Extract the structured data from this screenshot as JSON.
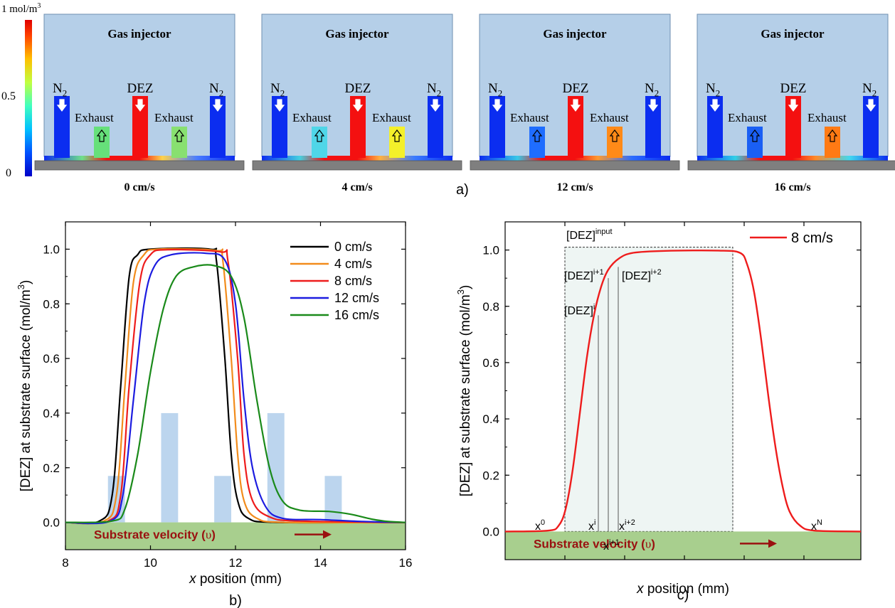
{
  "colorbar": {
    "top_label": "1 mol/m",
    "top_label_sup": "3",
    "mid_label": "0.5",
    "bottom_label": "0"
  },
  "panel_a": {
    "label": "a)",
    "panels": [
      {
        "velocity_label": "0 cm/s",
        "left_exhaust_color": "#66e07a",
        "right_exhaust_color": "#88e070",
        "slit_grad": [
          "#6fe08a",
          "#ffd24a",
          "#4a7dff"
        ]
      },
      {
        "velocity_label": "4 cm/s",
        "left_exhaust_color": "#4fd6e8",
        "right_exhaust_color": "#f4f02a",
        "slit_grad": [
          "#44d0e0",
          "#ffb040",
          "#3a7cff"
        ]
      },
      {
        "velocity_label": "12 cm/s",
        "left_exhaust_color": "#1f6dff",
        "right_exhaust_color": "#ff8a18",
        "slit_grad": [
          "#38c8e8",
          "#ff9a30",
          "#2b6dff"
        ]
      },
      {
        "velocity_label": "16 cm/s",
        "left_exhaust_color": "#1a5ff4",
        "right_exhaust_color": "#ff7a14",
        "slit_grad": [
          "#30d0e8",
          "#ff8a28",
          "#40d8f0"
        ]
      }
    ],
    "labels": {
      "title": "Gas injector",
      "n2": "N",
      "n2_sub": "2",
      "dez": "DEZ",
      "exhaust": "Exhaust"
    },
    "colors": {
      "injector_bg": "#b5cfe8",
      "n2": "#0b2df0",
      "dez": "#f41010",
      "substrate": "#7f7f7f"
    }
  },
  "chart_data": [
    {
      "type": "line",
      "panel_label": "b)",
      "xlabel_italic": "x",
      "xlabel_rest": " position (mm)",
      "ylabel": "[DEZ] at substrate surface (mol/m",
      "ylabel_sup": "3",
      "ylabel_close": ")",
      "xlim": [
        8,
        16
      ],
      "ylim": [
        -0.1,
        1.1
      ],
      "xticks": [
        "8",
        "10",
        "12",
        "14",
        "16"
      ],
      "yticks": [
        "0.0",
        "0.2",
        "0.4",
        "0.6",
        "0.8",
        "1.0"
      ],
      "substrate_text": "Substrate velocity (",
      "substrate_symbol": "υ",
      "substrate_close": ")",
      "background_bars": [
        {
          "x0": 9.0,
          "x1": 9.4,
          "height": 0.17
        },
        {
          "x0": 10.25,
          "x1": 10.65,
          "height": 0.4
        },
        {
          "x0": 11.5,
          "x1": 11.9,
          "height": 0.17
        },
        {
          "x0": 12.75,
          "x1": 13.15,
          "height": 0.4
        },
        {
          "x0": 14.1,
          "x1": 14.5,
          "height": 0.17
        }
      ],
      "series": [
        {
          "name": "0 cm/s",
          "color": "#000000",
          "plateau": 1.0,
          "points": [
            [
              8,
              0
            ],
            [
              8.8,
              0.005
            ],
            [
              9.1,
              0.1
            ],
            [
              9.3,
              0.5
            ],
            [
              9.5,
              0.9
            ],
            [
              9.7,
              0.98
            ],
            [
              10,
              1.0
            ],
            [
              11.4,
              1.0
            ],
            [
              11.55,
              0.96
            ],
            [
              11.75,
              0.6
            ],
            [
              11.9,
              0.25
            ],
            [
              12.05,
              0.08
            ],
            [
              12.3,
              0.015
            ],
            [
              13,
              0
            ],
            [
              16,
              0
            ]
          ]
        },
        {
          "name": "4 cm/s",
          "color": "#f28c1c",
          "plateau": 1.0,
          "points": [
            [
              8,
              0
            ],
            [
              8.9,
              0.005
            ],
            [
              9.2,
              0.1
            ],
            [
              9.4,
              0.5
            ],
            [
              9.6,
              0.88
            ],
            [
              9.85,
              0.98
            ],
            [
              10.2,
              1.0
            ],
            [
              11.55,
              0.995
            ],
            [
              11.7,
              0.96
            ],
            [
              11.9,
              0.6
            ],
            [
              12.05,
              0.25
            ],
            [
              12.2,
              0.08
            ],
            [
              12.5,
              0.015
            ],
            [
              13.2,
              0
            ],
            [
              16,
              0
            ]
          ]
        },
        {
          "name": "8 cm/s",
          "color": "#ee1c1c",
          "plateau": 1.0,
          "points": [
            [
              8,
              0
            ],
            [
              9.0,
              0.005
            ],
            [
              9.3,
              0.1
            ],
            [
              9.5,
              0.5
            ],
            [
              9.75,
              0.88
            ],
            [
              10.0,
              0.98
            ],
            [
              10.4,
              0.998
            ],
            [
              11.65,
              0.99
            ],
            [
              11.82,
              0.96
            ],
            [
              12.05,
              0.6
            ],
            [
              12.2,
              0.25
            ],
            [
              12.4,
              0.08
            ],
            [
              12.8,
              0.02
            ],
            [
              13.5,
              0.005
            ],
            [
              16,
              0
            ]
          ]
        },
        {
          "name": "12 cm/s",
          "color": "#1c1ce0",
          "plateau": 0.985,
          "points": [
            [
              8,
              0
            ],
            [
              9.05,
              0.005
            ],
            [
              9.35,
              0.1
            ],
            [
              9.6,
              0.45
            ],
            [
              9.85,
              0.8
            ],
            [
              10.1,
              0.94
            ],
            [
              10.5,
              0.98
            ],
            [
              11.3,
              0.985
            ],
            [
              11.75,
              0.96
            ],
            [
              12.0,
              0.8
            ],
            [
              12.2,
              0.45
            ],
            [
              12.4,
              0.2
            ],
            [
              12.7,
              0.06
            ],
            [
              13.1,
              0.015
            ],
            [
              14.0,
              0.01
            ],
            [
              15,
              0.003
            ],
            [
              16,
              0
            ]
          ]
        },
        {
          "name": "16 cm/s",
          "color": "#1a8a1a",
          "plateau": 0.94,
          "points": [
            [
              8,
              0
            ],
            [
              9.1,
              0.005
            ],
            [
              9.4,
              0.05
            ],
            [
              9.7,
              0.25
            ],
            [
              10.0,
              0.55
            ],
            [
              10.3,
              0.78
            ],
            [
              10.6,
              0.9
            ],
            [
              11.0,
              0.935
            ],
            [
              11.5,
              0.94
            ],
            [
              11.9,
              0.9
            ],
            [
              12.2,
              0.75
            ],
            [
              12.5,
              0.45
            ],
            [
              12.8,
              0.2
            ],
            [
              13.1,
              0.08
            ],
            [
              13.5,
              0.045
            ],
            [
              14.2,
              0.04
            ],
            [
              14.7,
              0.03
            ],
            [
              15.2,
              0.012
            ],
            [
              15.6,
              0.003
            ],
            [
              16,
              0
            ]
          ]
        }
      ]
    },
    {
      "type": "line",
      "panel_label": "c)",
      "xlabel_italic": "x",
      "xlabel_rest": " position (mm)",
      "ylabel": "[DEZ] at substrate surface (mol/m",
      "ylabel_sup": "3",
      "ylabel_close": ")",
      "xlim": [
        0,
        1
      ],
      "ylim": [
        -0.1,
        1.1
      ],
      "yticks": [
        "0.0",
        "0.2",
        "0.4",
        "0.6",
        "0.8",
        "1.0"
      ],
      "substrate_text": "Substrate velocity (",
      "substrate_symbol": "υ",
      "substrate_close": ")",
      "legend": "8 cm/s",
      "color": "#ee1c1c",
      "box_label": "[DEZ]",
      "box_label_sup": "input",
      "annotations": {
        "dez_i": "[DEZ]",
        "dez_i_sup": "i",
        "dez_i1": "[DEZ]",
        "dez_i1_sup": "i+1",
        "dez_i2": "[DEZ]",
        "dez_i2_sup": "i+2",
        "x0": "x",
        "x0_sup": "0",
        "xi": "x",
        "xi_sup": "i",
        "xi1": "x",
        "xi1_sup": "i+1",
        "xi2": "x",
        "xi2_sup": "i+2",
        "xN": "x",
        "xN_sup": "N"
      },
      "points": [
        [
          0,
          0
        ],
        [
          0.12,
          0.003
        ],
        [
          0.15,
          0.02
        ],
        [
          0.17,
          0.08
        ],
        [
          0.19,
          0.22
        ],
        [
          0.21,
          0.42
        ],
        [
          0.23,
          0.62
        ],
        [
          0.25,
          0.77
        ],
        [
          0.27,
          0.87
        ],
        [
          0.29,
          0.93
        ],
        [
          0.32,
          0.97
        ],
        [
          0.36,
          0.99
        ],
        [
          0.45,
          0.997
        ],
        [
          0.6,
          0.998
        ],
        [
          0.66,
          0.99
        ],
        [
          0.68,
          0.95
        ],
        [
          0.7,
          0.85
        ],
        [
          0.72,
          0.68
        ],
        [
          0.74,
          0.48
        ],
        [
          0.76,
          0.3
        ],
        [
          0.78,
          0.16
        ],
        [
          0.8,
          0.07
        ],
        [
          0.83,
          0.02
        ],
        [
          0.87,
          0.003
        ],
        [
          1,
          0
        ]
      ]
    }
  ]
}
